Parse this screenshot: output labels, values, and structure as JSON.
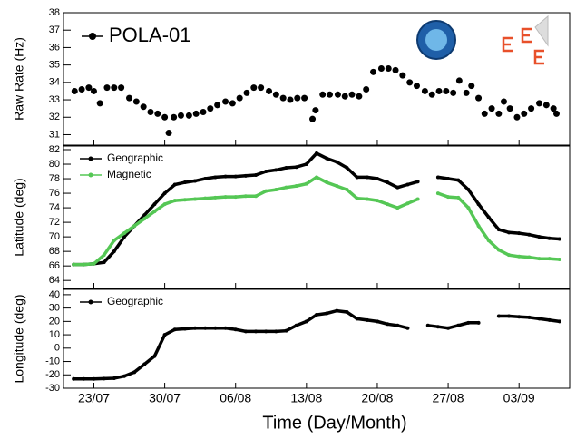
{
  "chart_data": [
    {
      "type": "scatter",
      "ylabel": "Raw Rate (Hz)",
      "legend": "upper left",
      "xlim": [
        201,
        251
      ],
      "ylim": [
        30.4,
        38
      ],
      "yticks": [
        31,
        32,
        33,
        34,
        35,
        36,
        37,
        38
      ],
      "x": [
        202.1,
        202.8,
        203.5,
        204.0,
        204.6,
        205.3,
        206.0,
        206.7,
        207.5,
        208.2,
        208.9,
        209.6,
        210.3,
        211.0,
        211.4,
        211.9,
        212.6,
        213.4,
        214.1,
        214.8,
        215.5,
        216.2,
        217.0,
        217.7,
        218.4,
        219.1,
        219.8,
        220.5,
        221.3,
        222.0,
        222.7,
        223.4,
        224.1,
        224.8,
        225.6,
        225.9,
        226.6,
        227.3,
        228.1,
        228.8,
        229.5,
        230.2,
        230.9,
        231.6,
        232.4,
        233.1,
        233.8,
        234.5,
        235.2,
        235.9,
        236.7,
        237.4,
        238.1,
        238.8,
        239.5,
        240.1,
        240.8,
        241.3,
        242.0,
        242.6,
        243.3,
        244.0,
        244.5,
        245.1,
        245.8,
        246.5,
        247.2,
        248.0,
        248.7,
        249.4,
        249.7
      ],
      "series": [
        {
          "name": "POLA-01",
          "color": "#000000",
          "values": [
            33.5,
            33.6,
            33.7,
            33.5,
            32.8,
            33.7,
            33.7,
            33.7,
            33.1,
            32.9,
            32.6,
            32.3,
            32.2,
            32.0,
            31.1,
            32.0,
            32.1,
            32.1,
            32.2,
            32.3,
            32.5,
            32.7,
            32.9,
            32.8,
            33.1,
            33.4,
            33.7,
            33.7,
            33.5,
            33.3,
            33.1,
            33.0,
            33.1,
            33.1,
            31.9,
            32.4,
            33.3,
            33.3,
            33.3,
            33.2,
            33.3,
            33.2,
            33.6,
            34.6,
            34.8,
            34.8,
            34.7,
            34.4,
            34.0,
            33.8,
            33.5,
            33.3,
            33.5,
            33.5,
            33.4,
            34.1,
            33.4,
            33.8,
            33.1,
            32.2,
            32.5,
            32.2,
            32.9,
            32.5,
            32.0,
            32.2,
            32.5,
            32.8,
            32.7,
            32.5,
            32.2
          ]
        }
      ]
    },
    {
      "type": "line",
      "ylabel": "Latitude (deg)",
      "legend": "upper left",
      "xlim": [
        201,
        251
      ],
      "ylim": [
        62.9,
        82.5
      ],
      "yticks": [
        64,
        66,
        68,
        70,
        72,
        74,
        76,
        78,
        80,
        82
      ],
      "x": [
        202,
        203,
        204,
        205,
        206,
        207,
        208,
        209,
        210,
        211,
        212,
        213,
        214,
        215,
        216,
        217,
        218,
        219,
        220,
        221,
        222,
        223,
        224,
        225,
        226,
        227,
        228,
        229,
        230,
        231,
        232,
        233,
        234,
        235,
        236,
        237,
        238,
        239,
        240,
        241,
        242,
        243,
        244,
        245,
        246,
        247,
        248,
        249,
        250
      ],
      "series": [
        {
          "name": "Geographic",
          "color": "#000000",
          "values": [
            66.2,
            66.2,
            66.3,
            66.5,
            68,
            70,
            71.5,
            73,
            74.5,
            76,
            77.2,
            77.5,
            77.7,
            78,
            78.2,
            78.3,
            78.3,
            78.4,
            78.5,
            79,
            79.2,
            79.5,
            79.6,
            80,
            81.5,
            80.8,
            80.3,
            79.5,
            78.2,
            78.2,
            78,
            77.5,
            76.8,
            77.2,
            77.6,
            null,
            78.2,
            78,
            77.8,
            76.5,
            74.5,
            72.7,
            71,
            70.6,
            70.5,
            70.3,
            70,
            69.8,
            69.7
          ]
        },
        {
          "name": "Magnetic",
          "color": "#55c755",
          "values": [
            66.2,
            66.2,
            66.3,
            67.5,
            69.5,
            70.5,
            71.5,
            72.5,
            73.5,
            74.5,
            75,
            75.1,
            75.2,
            75.3,
            75.4,
            75.5,
            75.5,
            75.6,
            75.6,
            76.3,
            76.5,
            76.8,
            77,
            77.3,
            78.2,
            77.5,
            77,
            76.5,
            75.3,
            75.2,
            75,
            74.5,
            74,
            74.6,
            75.2,
            null,
            76,
            75.5,
            75.4,
            74,
            71.5,
            69.5,
            68.2,
            67.5,
            67.3,
            67.2,
            67,
            67,
            66.9
          ]
        }
      ]
    },
    {
      "type": "line",
      "ylabel": "Longitude (deg)",
      "xlabel": "Time (Day/Month)",
      "legend": "upper left",
      "xlim": [
        201,
        251
      ],
      "ylim": [
        -30,
        44
      ],
      "yticks": [
        -30,
        -20,
        -10,
        0,
        10,
        20,
        30,
        40
      ],
      "xticks": [
        {
          "value": 204,
          "label": "23/07"
        },
        {
          "value": 211,
          "label": "30/07"
        },
        {
          "value": 218,
          "label": "06/08"
        },
        {
          "value": 225,
          "label": "13/08"
        },
        {
          "value": 232,
          "label": "20/08"
        },
        {
          "value": 239,
          "label": "27/08"
        },
        {
          "value": 246,
          "label": "03/09"
        }
      ],
      "x": [
        202,
        203,
        204,
        205,
        206,
        207,
        208,
        209,
        210,
        211,
        212,
        213,
        214,
        215,
        216,
        217,
        218,
        219,
        220,
        221,
        222,
        223,
        224,
        225,
        226,
        227,
        228,
        229,
        230,
        231,
        232,
        233,
        234,
        235,
        236,
        237,
        238,
        239,
        240,
        241,
        242,
        243,
        244,
        245,
        246,
        247,
        248,
        249,
        250
      ],
      "series": [
        {
          "name": "Geographic",
          "color": "#000000",
          "values": [
            -23,
            -23,
            -23,
            -22.8,
            -22.5,
            -21,
            -18,
            -12,
            -6,
            10,
            14,
            14.5,
            15,
            15,
            15,
            15,
            14,
            12.5,
            12.5,
            12.5,
            12.5,
            13,
            17,
            20,
            25,
            26,
            28,
            27,
            22,
            21,
            20,
            18,
            17,
            15,
            null,
            17,
            16,
            15,
            17,
            19,
            19,
            null,
            24,
            24,
            23.5,
            23,
            22,
            21,
            20
          ]
        }
      ]
    }
  ]
}
